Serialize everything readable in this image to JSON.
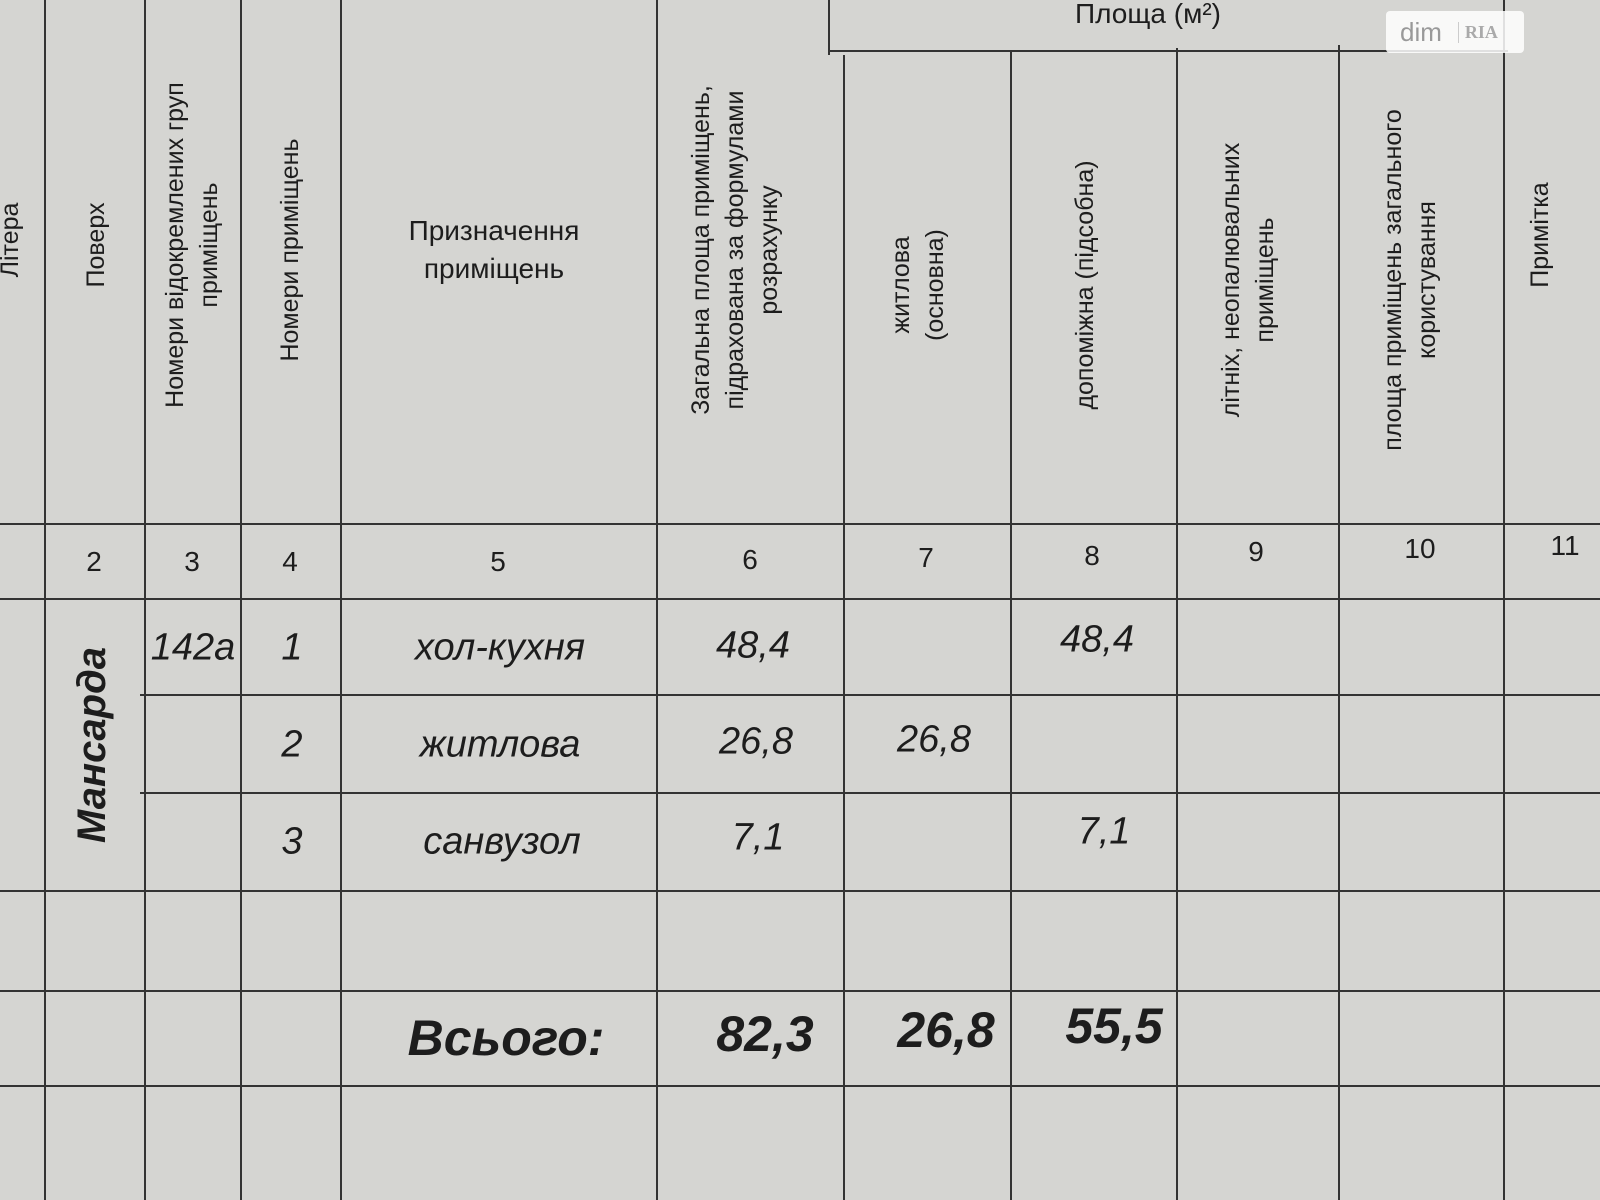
{
  "header": {
    "area_group": "Площа (м²)",
    "columns": [
      "Літера",
      "Поверх",
      "Номери відокремлених груп приміщень",
      "Номери приміщень",
      "Призначення приміщень",
      "Загальна площа приміщень, підрахована за формулами розрахунку",
      "житлова (основна)",
      "допоміжна (підсобна)",
      "літніх, неопалювальних приміщень",
      "площа приміщень загального користування",
      "Примітка"
    ],
    "column_numbers": [
      "2",
      "3",
      "4",
      "5",
      "6",
      "7",
      "8",
      "9",
      "10",
      "11"
    ]
  },
  "floor": "Мансарда",
  "group": "142а",
  "rows": [
    {
      "no": "1",
      "purpose": "хол-кухня",
      "total": "48,4",
      "living": "",
      "auxiliary": "48,4"
    },
    {
      "no": "2",
      "purpose": "житлова",
      "total": "26,8",
      "living": "26,8",
      "auxiliary": ""
    },
    {
      "no": "3",
      "purpose": "санвузол",
      "total": "7,1",
      "living": "",
      "auxiliary": "7,1"
    }
  ],
  "totals": {
    "label": "Всього:",
    "total": "82,3",
    "living": "26,8",
    "auxiliary": "55,5"
  },
  "watermark": {
    "text": "dim",
    "logo": "RIA"
  }
}
